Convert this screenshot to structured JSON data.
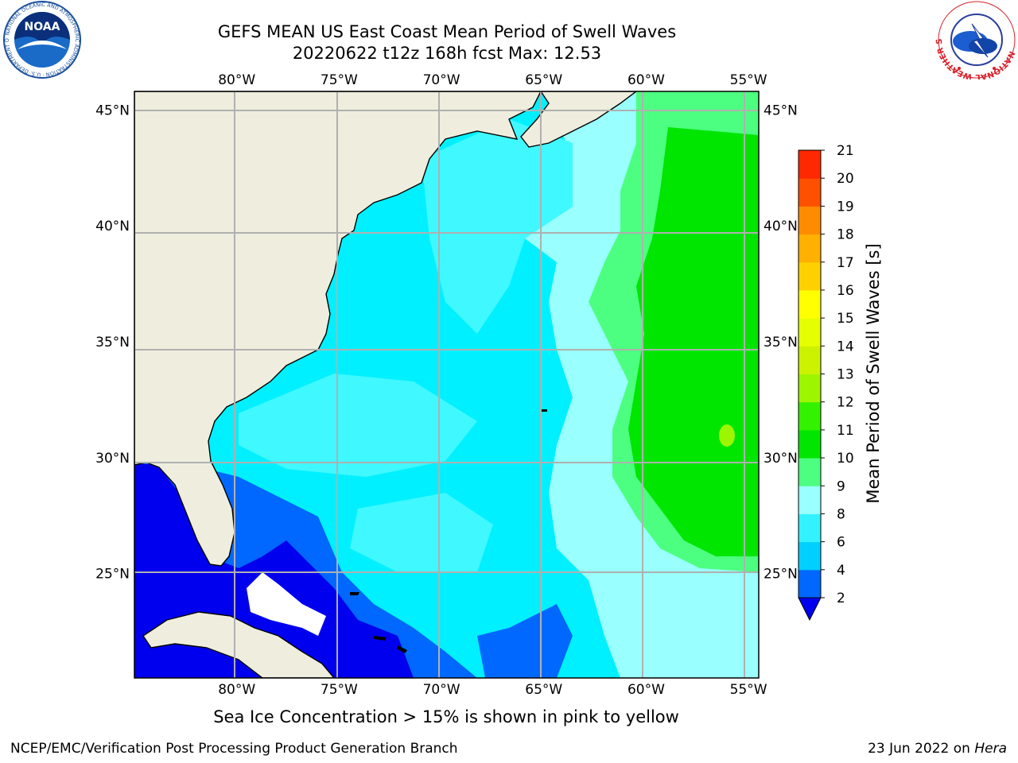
{
  "title_line1": "GEFS MEAN US East Coast Mean Period of Swell Waves",
  "title_line2": "20220622 t12z 168h fcst   Max: 12.53",
  "footer_note": "Sea Ice Concentration > 15% is shown in pink to yellow",
  "footer_left": "NCEP/EMC/Verification Post Processing Product Generation Branch",
  "footer_date": "23 Jun 2022 on ",
  "footer_host": "Hera",
  "logos": {
    "left": "noaa-logo",
    "right": "nws-logo"
  },
  "logo_text": {
    "noaa": "NOAA",
    "noaa_ring": "NATIONAL OCEANIC AND ATMOSPHERIC ADMINISTRATION · U.S. DEPARTMENT OF COMMERCE",
    "nws_ring": "NATIONAL WEATHER SERVICE"
  },
  "map": {
    "lon_range": [
      -85,
      -54.5
    ],
    "lat_range": [
      20.5,
      45.8
    ],
    "lon_ticks": [
      "80°W",
      "75°W",
      "70°W",
      "65°W",
      "60°W",
      "55°W"
    ],
    "lon_tick_values": [
      -80,
      -75,
      -70,
      -65,
      -60,
      -55
    ],
    "lat_ticks": [
      "25°N",
      "30°N",
      "35°N",
      "40°N",
      "45°N"
    ],
    "lat_tick_values": [
      25,
      30,
      35,
      40,
      45
    ],
    "land_color": "#efedde",
    "grid_color": "#b0b0b0"
  },
  "colorbar": {
    "label": "Mean Period of Swell Waves [s]",
    "ticks": [
      "2",
      "4",
      "6",
      "8",
      "9",
      "10",
      "11",
      "12",
      "13",
      "14",
      "15",
      "16",
      "17",
      "18",
      "19",
      "20",
      "21"
    ],
    "colors": [
      "#0068ff",
      "#00d0ff",
      "#33f2ff",
      "#99ffff",
      "#4dff80",
      "#00e600",
      "#33f200",
      "#9ef500",
      "#ccf200",
      "#e6ff00",
      "#ffff00",
      "#ffd000",
      "#ffb000",
      "#ff8c00",
      "#ff5000",
      "#ff2800"
    ],
    "under_color": "#0000ee"
  },
  "fields": {
    "deep_blue": "#0000ee",
    "blue": "#0068ff",
    "cyan": "#00f0ff",
    "light_cyan": "#40f8ff",
    "pale_cyan": "#99ffff",
    "light_green": "#4dff80",
    "green": "#00e600",
    "yellow_green": "#9ef500"
  }
}
